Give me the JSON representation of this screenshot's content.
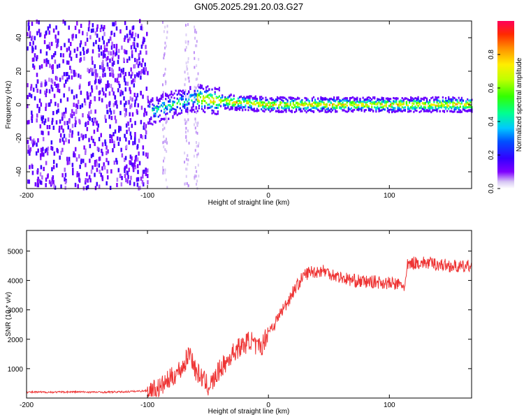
{
  "title": "GN05.2025.291.20.03.G27",
  "chart_data": [
    {
      "type": "heatmap",
      "xlabel": "Height of straight line (km)",
      "ylabel": "Frequency (Hz)",
      "xlim": [
        -200,
        168
      ],
      "ylim": [
        -50,
        50
      ],
      "xticks": [
        -200,
        -100,
        0,
        100
      ],
      "yticks": [
        -40,
        -20,
        0,
        20,
        40
      ],
      "colorbar": {
        "label": "Normalized spectral amplitude",
        "range": [
          0,
          1
        ],
        "ticks": [
          "0.0",
          "0.2",
          "0.4",
          "0.6",
          "0.8"
        ]
      },
      "regions": [
        {
          "x_range": [
            -200,
            -100
          ],
          "description_value": "broadband noise, amplitude ~0.1-0.2 across all frequencies"
        },
        {
          "x_range": [
            -100,
            168
          ],
          "center_frequency_hz": [
            [
              -100,
              -5
            ],
            [
              -90,
              -2
            ],
            [
              -60,
              4
            ],
            [
              -40,
              2
            ],
            [
              -20,
              1
            ],
            [
              0,
              0
            ],
            [
              50,
              0
            ],
            [
              100,
              0
            ],
            [
              168,
              0
            ]
          ],
          "peak_amplitude": 0.9
        }
      ]
    },
    {
      "type": "line",
      "xlabel": "Height of straight line (km)",
      "ylabel": "SNR (10 * v/v)",
      "xlim": [
        -200,
        168
      ],
      "ylim": [
        0,
        5700
      ],
      "xticks": [
        -200,
        -100,
        0,
        100
      ],
      "yticks": [
        1000,
        2000,
        3000,
        4000,
        5000
      ],
      "color": "#ee3333",
      "series": [
        {
          "x": [
            -200,
            -180,
            -160,
            -140,
            -120,
            -100,
            -90,
            -80,
            -70,
            -65,
            -60,
            -55,
            -50,
            -45,
            -40,
            -35,
            -30,
            -25,
            -20,
            -15,
            -10,
            -5,
            0,
            5,
            10,
            15,
            20,
            25,
            30,
            35,
            40,
            45,
            50,
            60,
            70,
            80,
            90,
            100,
            110,
            113,
            115,
            120,
            130,
            140,
            150,
            160,
            168
          ],
          "y": [
            200,
            200,
            210,
            200,
            210,
            250,
            350,
            700,
            1100,
            1600,
            900,
            700,
            400,
            600,
            1000,
            1200,
            1500,
            1700,
            1800,
            2000,
            1700,
            1800,
            2300,
            2500,
            2900,
            3200,
            3600,
            3900,
            4200,
            4300,
            4300,
            4350,
            4250,
            4100,
            4000,
            3950,
            3950,
            3900,
            3850,
            3800,
            4500,
            4600,
            4600,
            4550,
            4500,
            4450,
            4500
          ]
        }
      ]
    }
  ]
}
